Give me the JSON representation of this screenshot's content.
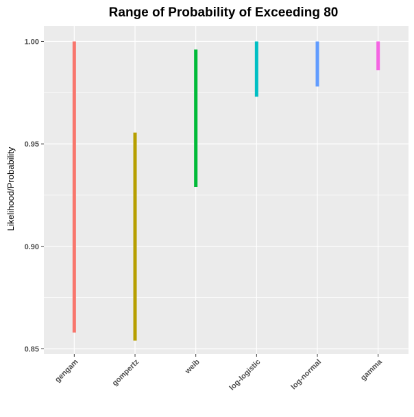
{
  "chart_data": {
    "type": "linerange",
    "title": "Range of Probability of Exceeding 80",
    "xlabel": "",
    "ylabel": "Likelihood/Probability",
    "categories": [
      "gengam",
      "gompertz",
      "weib",
      "log-logistic",
      "log-normal",
      "gamma"
    ],
    "ranges": [
      {
        "category": "gengam",
        "ymin": 0.858,
        "ymax": 1.0,
        "color": "#F8766D"
      },
      {
        "category": "gompertz",
        "ymin": 0.854,
        "ymax": 0.9555,
        "color": "#B79F00"
      },
      {
        "category": "weib",
        "ymin": 0.929,
        "ymax": 0.996,
        "color": "#00BA38"
      },
      {
        "category": "log-logistic",
        "ymin": 0.973,
        "ymax": 1.0,
        "color": "#00BFC4"
      },
      {
        "category": "log-normal",
        "ymin": 0.978,
        "ymax": 1.0,
        "color": "#619CFF"
      },
      {
        "category": "gamma",
        "ymin": 0.986,
        "ymax": 1.0,
        "color": "#F564E3"
      }
    ],
    "yticks": [
      0.85,
      0.9,
      0.95,
      1.0
    ],
    "ytick_labels": [
      "0.85",
      "0.90",
      "0.95",
      "1.00"
    ],
    "ylim": [
      0.8475,
      1.0075
    ],
    "grid": true,
    "legend": "none",
    "panel_background": "#EBEBEB",
    "grid_color": "#FFFFFF"
  }
}
